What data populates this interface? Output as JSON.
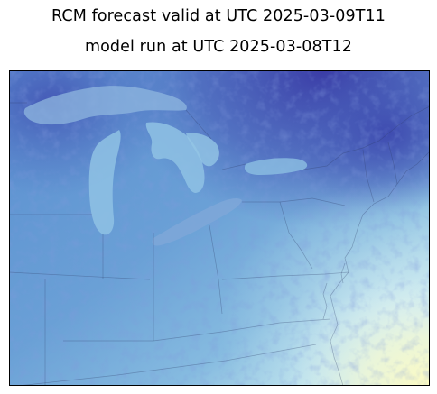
{
  "title": {
    "line1": "RCM forecast valid at UTC 2025-03-09T11",
    "line2": "model run at UTC 2025-03-08T12"
  },
  "colors": {
    "deep_blue": "#3b3fa8",
    "mid_blue": "#5b8ccc",
    "light_blue": "#8fc0e2",
    "pale_cyan": "#d6eef3",
    "pale_yellow": "#fdfbc2",
    "border": "#000000"
  }
}
